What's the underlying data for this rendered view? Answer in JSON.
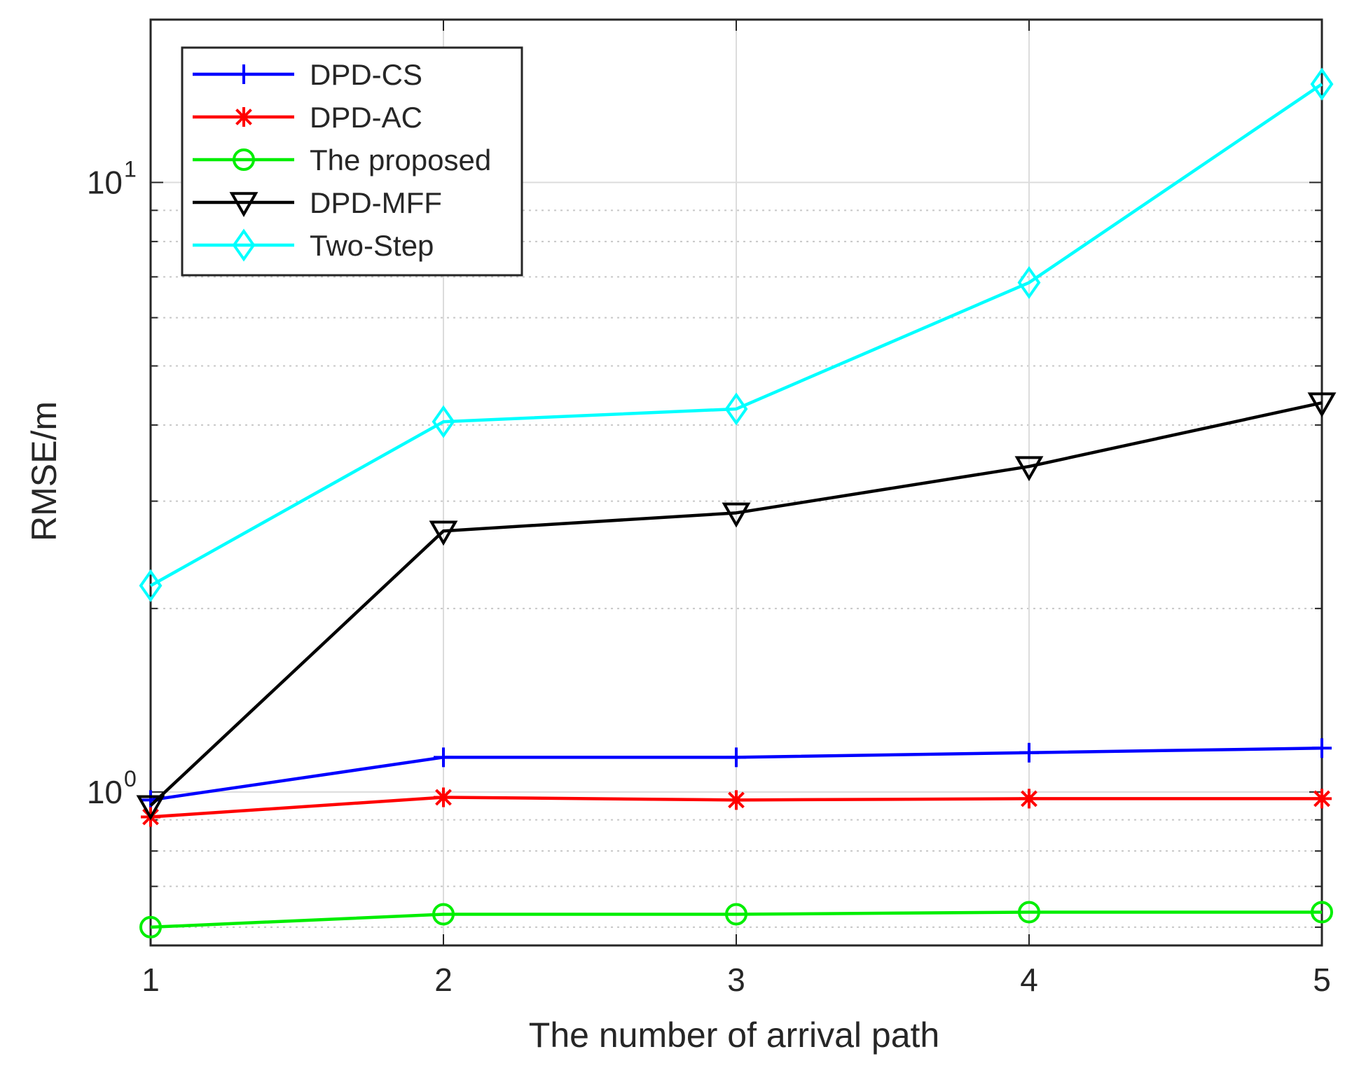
{
  "chart_data": {
    "type": "line",
    "xlabel": "The number of arrival path",
    "ylabel": "RMSE/m",
    "x": [
      1,
      2,
      3,
      4,
      5
    ],
    "xlim": [
      1,
      5
    ],
    "ylim": [
      0.56,
      18.5
    ],
    "yscale": "log",
    "grid": true,
    "legend_position": "top-left",
    "x_ticks": [
      {
        "value": 1,
        "label": "1"
      },
      {
        "value": 2,
        "label": "2"
      },
      {
        "value": 3,
        "label": "3"
      },
      {
        "value": 4,
        "label": "4"
      },
      {
        "value": 5,
        "label": "5"
      }
    ],
    "y_ticks": [
      {
        "value": 1,
        "base": "10",
        "exp": "0"
      },
      {
        "value": 10,
        "base": "10",
        "exp": "1"
      }
    ],
    "series": [
      {
        "name": "DPD-CS",
        "color": "#0000ff",
        "marker": "plus",
        "values": [
          0.97,
          1.14,
          1.14,
          1.16,
          1.18
        ]
      },
      {
        "name": "DPD-AC",
        "color": "#ff0000",
        "marker": "asterisk",
        "values": [
          0.91,
          0.98,
          0.97,
          0.975,
          0.975
        ]
      },
      {
        "name": "The proposed",
        "color": "#00ee00",
        "marker": "circle",
        "values": [
          0.6,
          0.63,
          0.63,
          0.635,
          0.635
        ]
      },
      {
        "name": "DPD-MFF",
        "color": "#000000",
        "marker": "triangle-down",
        "values": [
          0.95,
          2.68,
          2.87,
          3.42,
          4.35
        ]
      },
      {
        "name": "Two-Step",
        "color": "#00ffff",
        "marker": "diamond",
        "values": [
          2.18,
          4.05,
          4.25,
          6.85,
          14.5
        ]
      }
    ]
  }
}
